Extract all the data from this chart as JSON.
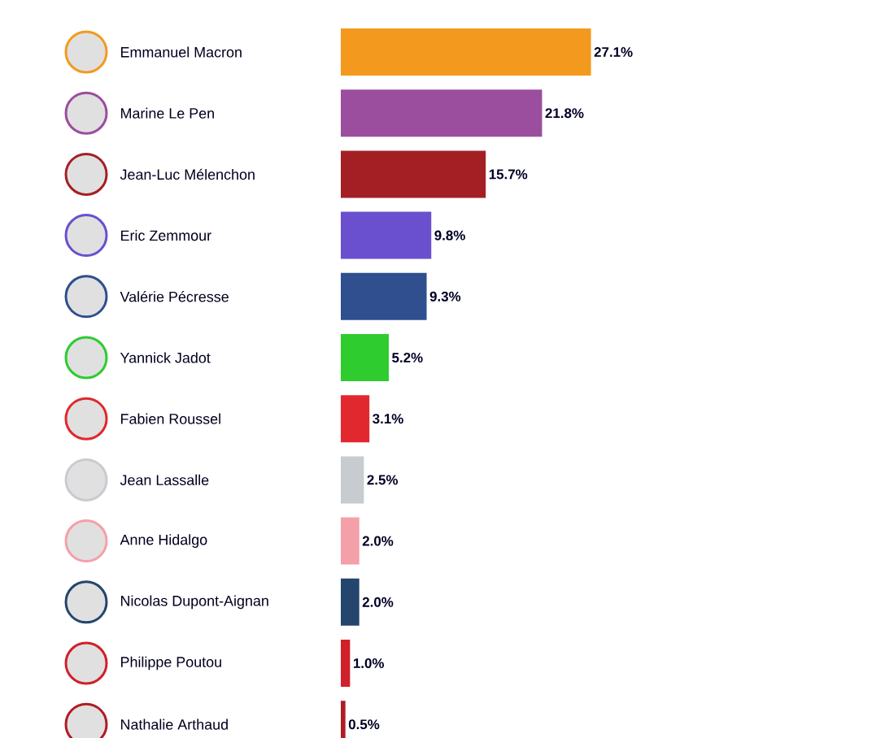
{
  "chart_data": {
    "type": "bar",
    "orientation": "horizontal",
    "categories": [
      "Emmanuel Macron",
      "Marine Le Pen",
      "Jean-Luc Mélenchon",
      "Eric Zemmour",
      "Valérie Pécresse",
      "Yannick Jadot",
      "Fabien Roussel",
      "Jean Lassalle",
      "Anne Hidalgo",
      "Nicolas Dupont-Aignan",
      "Philippe Poutou",
      "Nathalie Arthaud"
    ],
    "values": [
      27.1,
      21.8,
      15.7,
      9.8,
      9.3,
      5.2,
      3.1,
      2.5,
      2.0,
      2.0,
      1.0,
      0.5
    ],
    "value_labels": [
      "27.1%",
      "21.8%",
      "15.7%",
      "9.8%",
      "9.3%",
      "5.2%",
      "3.1%",
      "2.5%",
      "2.0%",
      "2.0%",
      "1.0%",
      "0.5%"
    ],
    "colors": [
      "#f39a1e",
      "#9b4d9e",
      "#a31f24",
      "#6a4fcf",
      "#2f4f8f",
      "#2ecc2e",
      "#e0282e",
      "#c8ccd0",
      "#f4a0a8",
      "#24456e",
      "#d0202a",
      "#b01c24"
    ]
  }
}
